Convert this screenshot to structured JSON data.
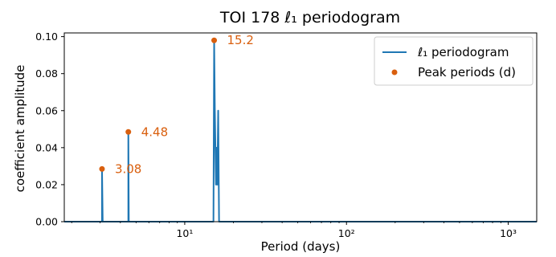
{
  "chart_data": {
    "type": "line",
    "title": "TOI 178 ℓ₁ periodogram",
    "xlabel": "Period (days)",
    "ylabel": "coefficient amplitude",
    "xscale": "log",
    "xlim": [
      1.8,
      1500
    ],
    "ylim": [
      0,
      0.102
    ],
    "yticks": [
      0.0,
      0.02,
      0.04,
      0.06,
      0.08,
      0.1
    ],
    "ytick_labels": [
      "0.00",
      "0.02",
      "0.04",
      "0.06",
      "0.08",
      "0.10"
    ],
    "xticks": [
      10,
      100,
      1000
    ],
    "xtick_labels": [
      "10¹",
      "10²",
      "10³"
    ],
    "grid": false,
    "legend_position": "top-right",
    "colors": {
      "line": "#1f77b4",
      "peaks": "#d95f0e",
      "annotation": "#d95f0e"
    },
    "series": [
      {
        "name": "ℓ₁ periodogram",
        "kind": "line",
        "x": [
          1.8,
          3.05,
          3.08,
          3.08,
          3.11,
          4.45,
          4.48,
          4.48,
          4.51,
          15.05,
          15.2,
          15.35,
          15.6,
          15.75,
          15.9,
          16.1,
          16.3,
          1500
        ],
        "y": [
          0,
          0,
          0,
          0.0285,
          0,
          0,
          0,
          0.0485,
          0,
          0,
          0.098,
          0.06,
          0.02,
          0.04,
          0.02,
          0.06,
          0,
          0
        ]
      },
      {
        "name": "Peak periods (d)",
        "kind": "scatter",
        "x": [
          3.08,
          4.48,
          15.2
        ],
        "y": [
          0.0285,
          0.0485,
          0.098
        ],
        "labels": [
          "3.08",
          "4.48",
          "15.2"
        ]
      }
    ]
  }
}
